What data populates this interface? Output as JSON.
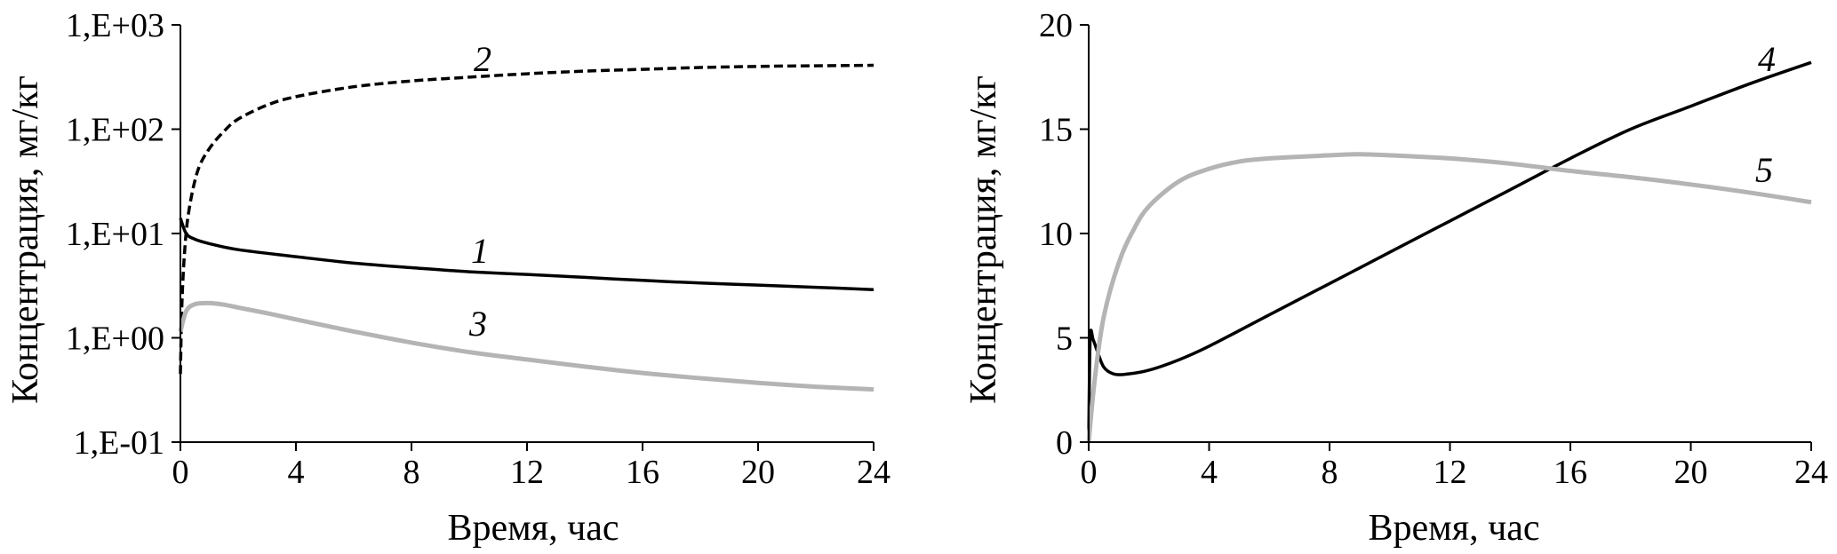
{
  "chart_data": [
    {
      "type": "line",
      "yscale": "log",
      "xlabel": "Время, час",
      "ylabel": "Концентрация, мг/кг",
      "xlim": [
        0,
        24
      ],
      "ylim": [
        0.1,
        1000
      ],
      "x_ticks": [
        "0",
        "4",
        "8",
        "12",
        "16",
        "20",
        "24"
      ],
      "y_ticks": [
        "1,E-01",
        "1,E+00",
        "1,E+01",
        "1,E+02",
        "1,E+03"
      ],
      "grid": false,
      "series": [
        {
          "name": "1",
          "color": "#000000",
          "dash": "solid",
          "x": [
            0,
            0.2,
            0.5,
            1,
            2,
            4,
            6,
            8,
            10,
            12,
            14,
            16,
            18,
            20,
            22,
            24
          ],
          "y": [
            14,
            10,
            8.8,
            8,
            7,
            6,
            5.2,
            4.7,
            4.3,
            4.05,
            3.8,
            3.55,
            3.35,
            3.2,
            3.05,
            2.9
          ]
        },
        {
          "name": "2",
          "color": "#000000",
          "dash": "dashed",
          "x": [
            0,
            0.05,
            0.15,
            0.3,
            0.6,
            1,
            1.5,
            2,
            3,
            4,
            6,
            8,
            10,
            12,
            14,
            16,
            18,
            20,
            22,
            24
          ],
          "y": [
            0.45,
            2,
            7,
            17,
            40,
            65,
            95,
            125,
            170,
            205,
            255,
            290,
            315,
            340,
            360,
            375,
            390,
            400,
            405,
            410
          ]
        },
        {
          "name": "3",
          "color": "#b4b4b4",
          "dash": "solid",
          "x": [
            0,
            0.2,
            0.5,
            1,
            1.5,
            2,
            3,
            4,
            6,
            8,
            10,
            12,
            14,
            16,
            18,
            20,
            22,
            24
          ],
          "y": [
            1.15,
            1.8,
            2.1,
            2.15,
            2.08,
            1.95,
            1.72,
            1.5,
            1.15,
            0.9,
            0.73,
            0.62,
            0.53,
            0.46,
            0.41,
            0.37,
            0.34,
            0.32
          ]
        }
      ],
      "annotations": [
        "2",
        "1",
        "3"
      ]
    },
    {
      "type": "line",
      "xlabel": "Время, час",
      "ylabel": "Концентрация, мг/кг",
      "xlim": [
        0,
        24
      ],
      "ylim": [
        0,
        20
      ],
      "x_ticks": [
        "0",
        "4",
        "8",
        "12",
        "16",
        "20",
        "24"
      ],
      "y_ticks": [
        "0",
        "5",
        "10",
        "15",
        "20"
      ],
      "grid": false,
      "series": [
        {
          "name": "4",
          "color": "#000000",
          "dash": "solid",
          "x": [
            0,
            0.05,
            0.15,
            0.3,
            0.5,
            0.8,
            1.2,
            2,
            3,
            4,
            6,
            8,
            10,
            12,
            14,
            16,
            18,
            20,
            22,
            24
          ],
          "y": [
            0,
            5,
            4.9,
            4.3,
            3.6,
            3.28,
            3.25,
            3.45,
            3.95,
            4.6,
            6.1,
            7.6,
            9.1,
            10.6,
            12.1,
            13.6,
            15,
            16.1,
            17.2,
            18.2
          ]
        },
        {
          "name": "5",
          "color": "#b4b4b4",
          "dash": "solid",
          "x": [
            0,
            0.2,
            0.5,
            1,
            1.5,
            2,
            3,
            4,
            5,
            6,
            8,
            9,
            10,
            12,
            14,
            16,
            18,
            20,
            22,
            24
          ],
          "y": [
            0,
            3,
            6,
            8.6,
            10.2,
            11.3,
            12.5,
            13.1,
            13.45,
            13.6,
            13.75,
            13.8,
            13.75,
            13.6,
            13.35,
            13,
            12.7,
            12.35,
            11.95,
            11.5
          ]
        }
      ],
      "annotations": [
        "4",
        "5"
      ]
    }
  ]
}
